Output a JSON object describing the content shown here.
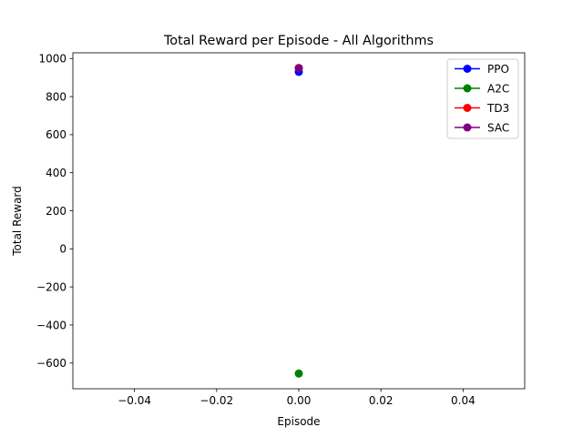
{
  "chart_data": {
    "type": "line",
    "title": "Total Reward per Episode - All Algorithms",
    "xlabel": "Episode",
    "ylabel": "Total Reward",
    "xlim": [
      -0.055,
      0.055
    ],
    "ylim": [
      -735,
      1030
    ],
    "xticks": [
      -0.04,
      -0.02,
      0.0,
      0.02,
      0.04
    ],
    "xtick_labels": [
      "−0.04",
      "−0.02",
      "0.00",
      "0.02",
      "0.04"
    ],
    "yticks": [
      -600,
      -400,
      -200,
      0,
      200,
      400,
      600,
      800,
      1000
    ],
    "ytick_labels": [
      "−600",
      "−400",
      "−200",
      "0",
      "200",
      "400",
      "600",
      "800",
      "1000"
    ],
    "grid": false,
    "legend_position": "top-right",
    "marker": "circle",
    "series": [
      {
        "name": "PPO",
        "color": "#0000ff",
        "x": [
          0
        ],
        "y": [
          930
        ]
      },
      {
        "name": "A2C",
        "color": "#008000",
        "x": [
          0
        ],
        "y": [
          -655
        ]
      },
      {
        "name": "TD3",
        "color": "#ff0000",
        "x": [
          0
        ],
        "y": [
          950
        ]
      },
      {
        "name": "SAC",
        "color": "#800080",
        "x": [
          0
        ],
        "y": [
          950
        ]
      }
    ]
  }
}
